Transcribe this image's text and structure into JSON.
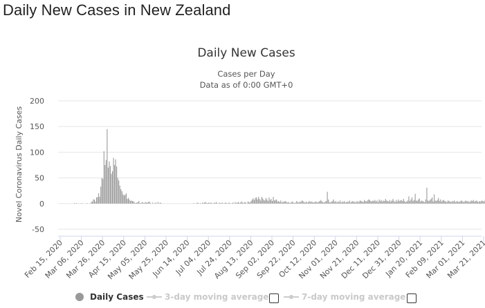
{
  "page": {
    "title": "Daily New Cases in New Zealand"
  },
  "chart_data": {
    "type": "bar",
    "title": "Daily New Cases",
    "subtitle": "Cases per Day",
    "subtitle2": "Data as of 0:00 GMT+0",
    "ylabel": "Novel Coronavirus Daily Cases",
    "ylim": [
      -50,
      200
    ],
    "yticks": [
      -50,
      0,
      50,
      100,
      150,
      200
    ],
    "grid": true,
    "legend_position": "bottom-center",
    "x_start_date": "2020-02-15",
    "x_tick_labels": [
      "Feb 15, 2020",
      "Mar 06, 2020",
      "Mar 26, 2020",
      "Apr 15, 2020",
      "May 05, 2020",
      "May 25, 2020",
      "Jun 14, 2020",
      "Jul 04, 2020",
      "Jul 24, 2020",
      "Aug 13, 2020",
      "Sep 02, 2020",
      "Sep 22, 2020",
      "Oct 12, 2020",
      "Nov 01, 2020",
      "Nov 21, 2020",
      "Dec 11, 2020",
      "Dec 31, 2020",
      "Jan 20, 2021",
      "Feb 09, 2021",
      "Mar 01, 2021",
      "Mar 21, 2021"
    ],
    "series": [
      {
        "name": "Daily Cases",
        "color": "#999999",
        "values": [
          0,
          0,
          0,
          0,
          0,
          0,
          0,
          0,
          0,
          0,
          0,
          0,
          0,
          1,
          0,
          1,
          0,
          0,
          0,
          0,
          1,
          0,
          0,
          0,
          0,
          1,
          0,
          0,
          0,
          3,
          4,
          8,
          8,
          4,
          12,
          13,
          20,
          13,
          33,
          50,
          48,
          102,
          75,
          85,
          145,
          70,
          82,
          73,
          58,
          63,
          89,
          75,
          86,
          72,
          50,
          45,
          35,
          28,
          24,
          18,
          16,
          17,
          20,
          9,
          11,
          8,
          5,
          6,
          5,
          4,
          2,
          1,
          2,
          3,
          5,
          1,
          1,
          3,
          2,
          1,
          3,
          2,
          2,
          3,
          4,
          1,
          0,
          2,
          0,
          1,
          2,
          0,
          3,
          0,
          2,
          1,
          0,
          0,
          0,
          0,
          0,
          0,
          0,
          0,
          0,
          0,
          0,
          0,
          0,
          0,
          0,
          0,
          0,
          0,
          0,
          0,
          0,
          0,
          0,
          0,
          0,
          0,
          0,
          0,
          0,
          0,
          1,
          0,
          0,
          2,
          1,
          0,
          1,
          0,
          2,
          1,
          2,
          3,
          1,
          1,
          2,
          1,
          2,
          1,
          0,
          2,
          1,
          3,
          1,
          0,
          2,
          1,
          1,
          2,
          0,
          1,
          2,
          1,
          0,
          2,
          1,
          0,
          1,
          2,
          0,
          3,
          1,
          2,
          3,
          1,
          2,
          4,
          2,
          1,
          3,
          2,
          0,
          4,
          3,
          2,
          5,
          8,
          10,
          7,
          11,
          12,
          8,
          13,
          9,
          6,
          13,
          10,
          7,
          6,
          11,
          8,
          5,
          12,
          7,
          9,
          5,
          13,
          6,
          7,
          8,
          4,
          5,
          3,
          6,
          2,
          4,
          3,
          5,
          4,
          2,
          3,
          2,
          1,
          3,
          4,
          2,
          1,
          2,
          5,
          3,
          2,
          4,
          3,
          6,
          5,
          3,
          2,
          4,
          2,
          3,
          5,
          3,
          4,
          3,
          2,
          3,
          4,
          3,
          2,
          4,
          5,
          7,
          4,
          3,
          2,
          4,
          5,
          23,
          8,
          3,
          2,
          4,
          5,
          8,
          3,
          5,
          2,
          4,
          3,
          6,
          2,
          4,
          3,
          5,
          2,
          3,
          4,
          3,
          6,
          2,
          4,
          5,
          3,
          4,
          2,
          5,
          3,
          4,
          6,
          5,
          4,
          3,
          7,
          5,
          4,
          6,
          8,
          7,
          5,
          4,
          6,
          5,
          7,
          4,
          6,
          3,
          8,
          5,
          7,
          4,
          6,
          5,
          9,
          6,
          5,
          4,
          7,
          4,
          6,
          9,
          5,
          3,
          7,
          4,
          8,
          5,
          6,
          7,
          5,
          9,
          5,
          3,
          4,
          6,
          14,
          5,
          8,
          12,
          5,
          7,
          19,
          6,
          5,
          8,
          10,
          4,
          6,
          5,
          4,
          3,
          8,
          31,
          6,
          5,
          7,
          9,
          12,
          4,
          18,
          6,
          5,
          7,
          11,
          5,
          8,
          4,
          6,
          7,
          5,
          4,
          3,
          6,
          5,
          4,
          3,
          5,
          4,
          6,
          3,
          4,
          5,
          3,
          4,
          5,
          6,
          4,
          3,
          5,
          6,
          4,
          5,
          3,
          4,
          6,
          5,
          7,
          4,
          5,
          6,
          4,
          3,
          5,
          4,
          6,
          5,
          4,
          7,
          5,
          6,
          5,
          7,
          9,
          6,
          8,
          7
        ]
      },
      {
        "name": "3-day moving average",
        "color": "#cccccc",
        "enabled": false
      },
      {
        "name": "7-day moving average",
        "color": "#cccccc",
        "enabled": false
      }
    ]
  }
}
